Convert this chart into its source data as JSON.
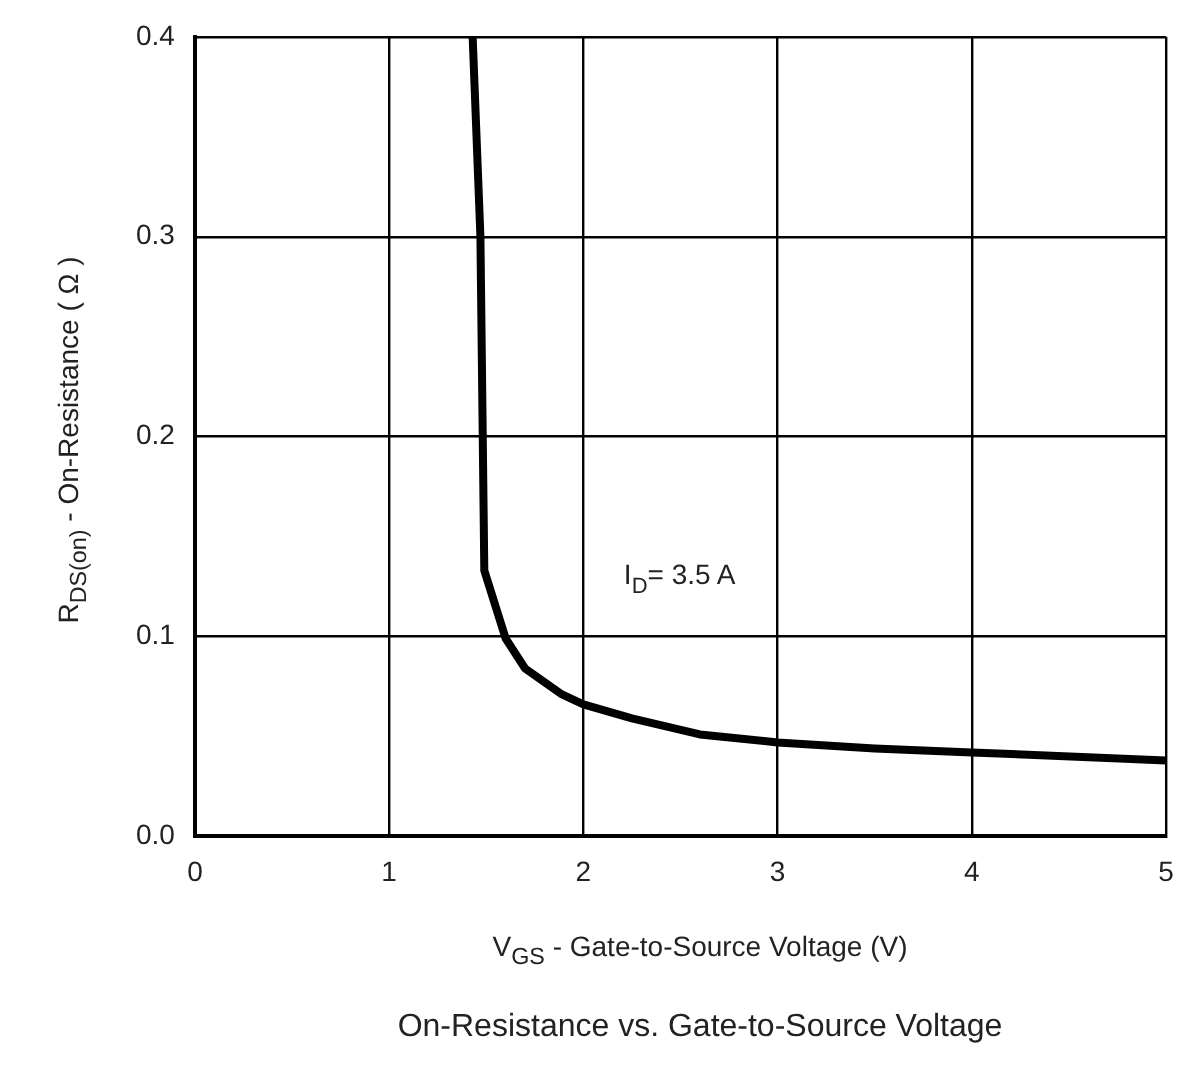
{
  "chart_data": {
    "type": "line",
    "title": "On-Resistance vs. Gate-to-Source Voltage",
    "xlabel": "V$_{GS}$ - Gate-to-Source Voltage (V)",
    "ylabel": "R$_{DS(on)}$ - On-Resistance ( Ω )",
    "series": [
      {
        "color": "#000000",
        "x": [
          1.43,
          1.47,
          1.49,
          1.6,
          1.7,
          1.89,
          2.0,
          2.25,
          2.6,
          3.0,
          3.5,
          4.0,
          5.0
        ],
        "values": [
          0.4,
          0.3,
          0.133,
          0.099,
          0.084,
          0.071,
          0.066,
          0.059,
          0.051,
          0.047,
          0.044,
          0.042,
          0.038
        ]
      }
    ],
    "xlim": [
      0,
      5
    ],
    "xticks": [
      0,
      1,
      2,
      3,
      4,
      5
    ],
    "ylim": [
      0,
      0.4
    ],
    "yticks": [
      {
        "value": 0,
        "label": "0.0"
      },
      0.1,
      0.2,
      0.3,
      0.4
    ],
    "grid": true,
    "legend": false,
    "marker": "none",
    "line_style": "solid",
    "annotations": [
      "I$_{D}$= 3.5 A"
    ]
  }
}
